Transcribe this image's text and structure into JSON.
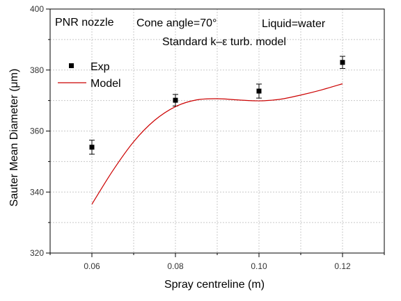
{
  "chart_data": {
    "type": "scatter",
    "xlabel": "Spray centreline (m)",
    "ylabel": "Sauter Mean Diameter (μm)",
    "xlim": [
      0.05,
      0.13
    ],
    "ylim": [
      320,
      400
    ],
    "x_ticks": [
      "0.06",
      "0.08",
      "0.10",
      "0.12"
    ],
    "y_ticks": [
      "320",
      "340",
      "360",
      "380",
      "400"
    ],
    "grid": true,
    "legend_position": "top-left",
    "annotations": {
      "nozzle": "PNR nozzle",
      "cone_angle": "Cone angle=70°",
      "liquid": "Liquid=water",
      "model_note": "Standard k–ε turb. model"
    },
    "series": [
      {
        "name": "Exp",
        "kind": "points",
        "color": "#000000",
        "x": [
          0.06,
          0.08,
          0.1,
          0.12
        ],
        "y": [
          354.7,
          370.1,
          373.1,
          382.5
        ],
        "err": [
          2.3,
          1.9,
          2.3,
          2.0
        ]
      },
      {
        "name": "Model",
        "kind": "line",
        "color": "#cc0000",
        "x": [
          0.06,
          0.065,
          0.07,
          0.075,
          0.08,
          0.085,
          0.09,
          0.095,
          0.1,
          0.105,
          0.11,
          0.115,
          0.12
        ],
        "y": [
          336.0,
          347.0,
          356.5,
          363.5,
          368.0,
          370.2,
          370.6,
          370.2,
          369.9,
          370.4,
          371.8,
          373.5,
          375.5
        ]
      }
    ]
  }
}
